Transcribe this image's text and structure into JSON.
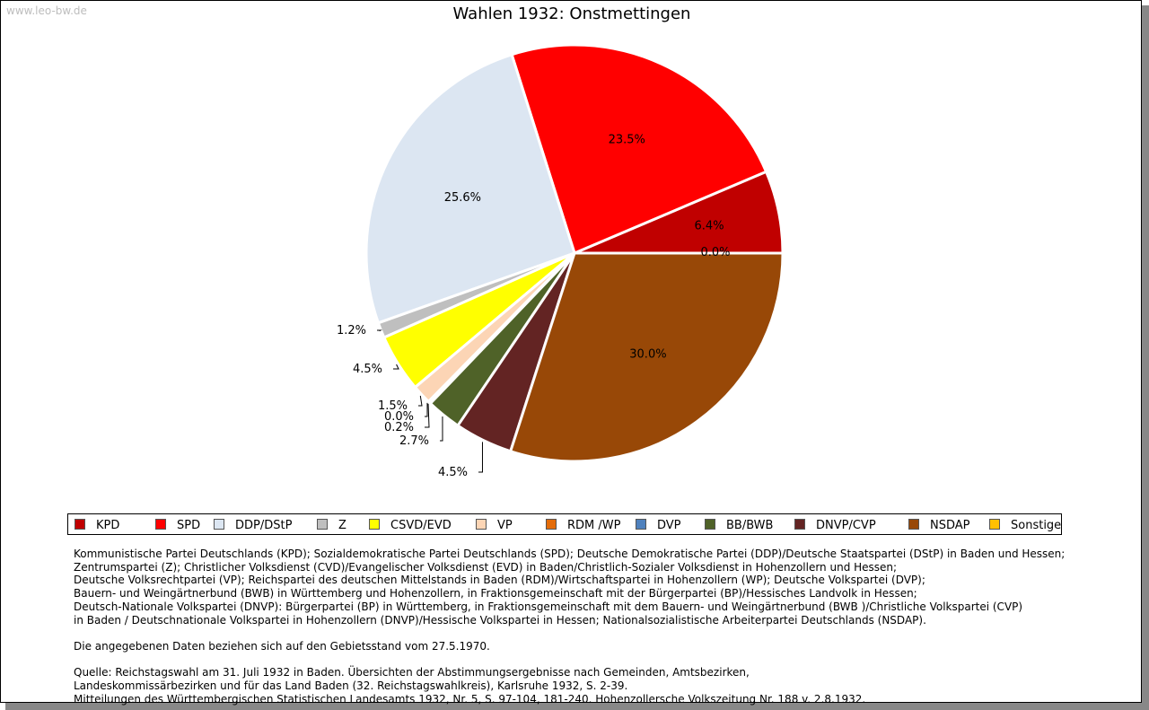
{
  "watermark": "www.leo-bw.de",
  "title": "Wahlen 1932: Onstmettingen",
  "chart_data": {
    "type": "pie",
    "title": "Wahlen 1932: Onstmettingen",
    "slices": [
      {
        "name": "KPD",
        "value": 6.4,
        "label": "6.4%",
        "color": "#c00000"
      },
      {
        "name": "SPD",
        "value": 23.5,
        "label": "23.5%",
        "color": "#ff0000"
      },
      {
        "name": "DDP/DStP",
        "value": 25.6,
        "label": "25.6%",
        "color": "#dce6f2"
      },
      {
        "name": "Z",
        "value": 1.2,
        "label": "1.2%",
        "color": "#bfbfbf"
      },
      {
        "name": "CSVD/EVD",
        "value": 4.5,
        "label": "4.5%",
        "color": "#ffff00"
      },
      {
        "name": "VP",
        "value": 1.5,
        "label": "1.5%",
        "color": "#fcd5b5"
      },
      {
        "name": "RDM /WP",
        "value": 0.0,
        "label": "0.0%",
        "color": "#e46c0a"
      },
      {
        "name": "DVP",
        "value": 0.2,
        "label": "0.2%",
        "color": "#4f81bd"
      },
      {
        "name": "BB/BWB",
        "value": 2.7,
        "label": "2.7%",
        "color": "#4f6228"
      },
      {
        "name": "DNVP/CVP",
        "value": 4.5,
        "label": "4.5%",
        "color": "#632423"
      },
      {
        "name": "NSDAP",
        "value": 30.0,
        "label": "30.0%",
        "color": "#984807"
      },
      {
        "name": "Sonstige",
        "value": 0.0,
        "label": "0.0%",
        "color": "#ffc000"
      }
    ],
    "legend_position": "bottom"
  },
  "notes": [
    "Kommunistische Partei Deutschlands (KPD); Sozialdemokratische Partei Deutschlands (SPD); Deutsche Demokratische Partei (DDP)/Deutsche Staatspartei (DStP) in Baden und Hessen;",
    "Zentrumspartei (Z); Christlicher Volksdienst (CVD)/Evangelischer Volksdienst (EVD) in Baden/Christlich-Sozialer Volksdienst in Hohenzollern und Hessen;",
    "Deutsche Volksrechtpartei (VP); Reichspartei des deutschen Mittelstands in Baden (RDM)/Wirtschaftspartei in Hohenzollern (WP); Deutsche Volkspartei (DVP);",
    "Bauern- und Weingärtnerbund (BWB) in Württemberg und Hohenzollern, in Fraktionsgemeinschaft mit der Bürgerpartei (BP)/Hessisches Landvolk in Hessen;",
    "Deutsch-Nationale Volkspartei (DNVP): Bürgerpartei (BP) in Württemberg, in Fraktionsgemeinschaft mit dem Bauern- und Weingärtnerbund (BWB )/Christliche Volkspartei (CVP)",
    "in Baden / Deutschnationale Volkspartei in Hohenzollern (DNVP)/Hessische Volkspartei in Hessen; Nationalsozialistische Arbeiterpartei Deutschlands (NSDAP).",
    "",
    "Die angegebenen Daten beziehen sich auf den Gebietsstand vom 27.5.1970.",
    "",
    "Quelle: Reichstagswahl am 31. Juli 1932 in Baden. Übersichten der Abstimmungsergebnisse nach Gemeinden, Amtsbezirken,",
    "Landeskommissärbezirken und für das Land Baden (32. Reichstagswahlkreis), Karlsruhe 1932, S. 2-39.",
    "Mitteilungen des Württembergischen Statistischen Landesamts 1932, Nr. 5, S. 97-104, 181-240. Hohenzollersche Volkszeitung Nr. 188 v. 2.8.1932."
  ]
}
